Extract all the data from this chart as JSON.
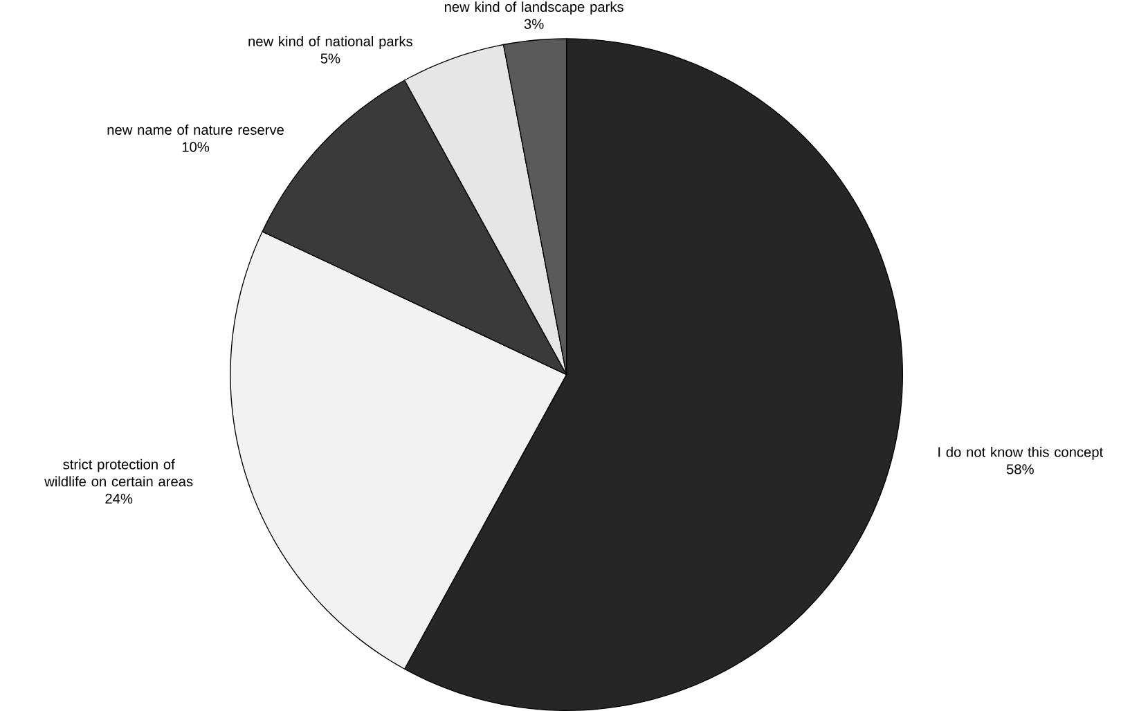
{
  "chart_data": {
    "type": "pie",
    "categories": [
      "I do not know this concept",
      "strict protection of wildlife on certain areas",
      "new name of nature reserve",
      "new kind of national parks",
      "new kind of landscape parks"
    ],
    "values": [
      58,
      24,
      10,
      5,
      3
    ],
    "value_labels": [
      "58%",
      "24%",
      "10%",
      "5%",
      "3%"
    ],
    "colors": [
      "#262626",
      "#f2f2f2",
      "#3a3a3a",
      "#e6e6e6",
      "#5a5a5a"
    ]
  }
}
